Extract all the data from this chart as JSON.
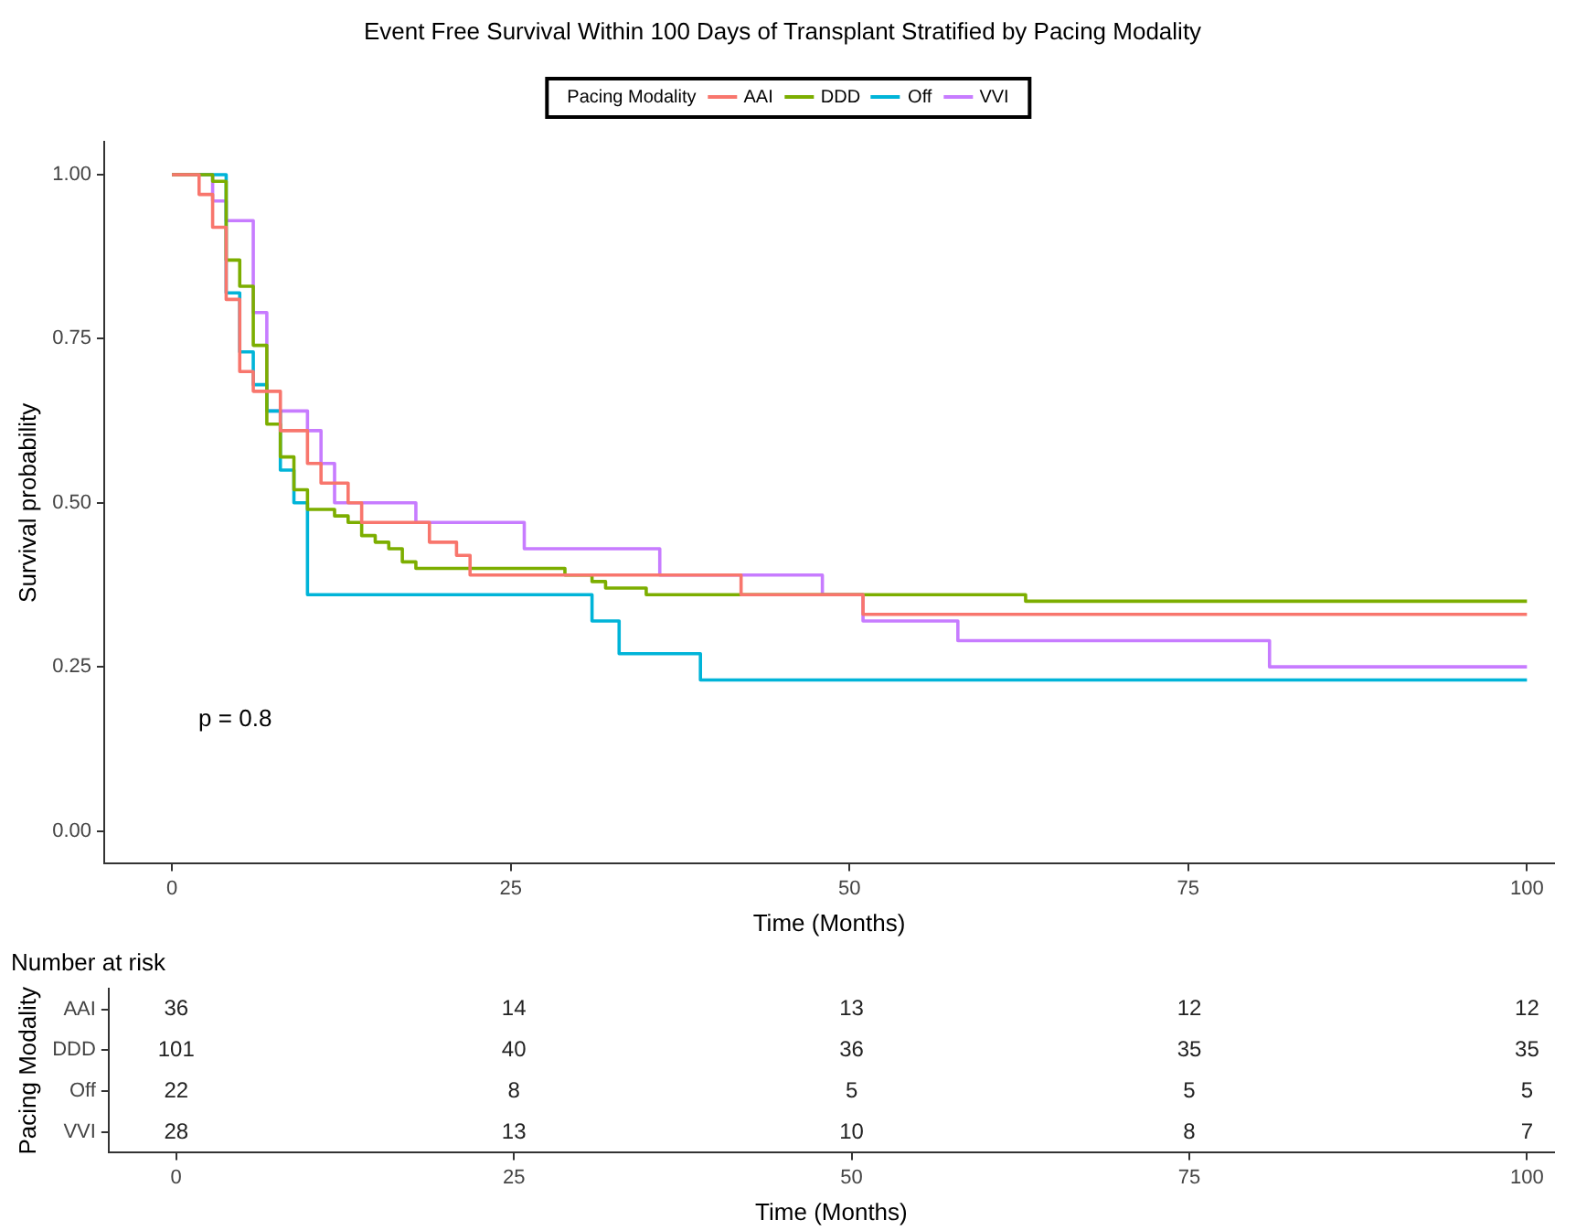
{
  "chart_data": [
    {
      "type": "step",
      "title": "Event Free Survival Within 100 Days of Transplant Stratified by Pacing Modality",
      "xlabel": "Time (Months)",
      "ylabel": "Survival probability",
      "legend_title": "Pacing Modality",
      "legend": "top",
      "marker": "none",
      "grid": false,
      "xlim": [
        -5,
        102
      ],
      "xticks": [
        0,
        25,
        50,
        75,
        100
      ],
      "ylim": [
        -0.05,
        1.05
      ],
      "yticks": [
        {
          "value": 0,
          "label": "0.00"
        },
        {
          "value": 0.25,
          "label": "0.25"
        },
        {
          "value": 0.5,
          "label": "0.50"
        },
        {
          "value": 0.75,
          "label": "0.75"
        },
        {
          "value": 1,
          "label": "1.00"
        }
      ],
      "annotations": [
        "p = 0.8"
      ],
      "series": [
        {
          "name": "AAI",
          "color": "#f8766d",
          "x": [
            0,
            2,
            3,
            4,
            5,
            6,
            8,
            10,
            11,
            13,
            14,
            19,
            21,
            22,
            42,
            51,
            100
          ],
          "values": [
            1,
            0.97,
            0.92,
            0.81,
            0.7,
            0.67,
            0.61,
            0.56,
            0.53,
            0.5,
            0.47,
            0.44,
            0.42,
            0.39,
            0.36,
            0.33,
            0.33
          ]
        },
        {
          "name": "DDD",
          "color": "#7cae00",
          "x": [
            0,
            3,
            4,
            5,
            6,
            7,
            8,
            9,
            10,
            12,
            13,
            14,
            15,
            16,
            17,
            18,
            29,
            31,
            32,
            35,
            63,
            100
          ],
          "values": [
            1,
            0.99,
            0.87,
            0.83,
            0.74,
            0.62,
            0.57,
            0.52,
            0.49,
            0.48,
            0.47,
            0.45,
            0.44,
            0.43,
            0.41,
            0.4,
            0.39,
            0.38,
            0.37,
            0.36,
            0.35,
            0.35
          ]
        },
        {
          "name": "Off",
          "color": "#00b4d8",
          "x": [
            0,
            4,
            5,
            6,
            7,
            8,
            9,
            10,
            31,
            33,
            39,
            100
          ],
          "values": [
            1,
            0.82,
            0.73,
            0.68,
            0.64,
            0.55,
            0.5,
            0.36,
            0.32,
            0.27,
            0.23,
            0.23
          ]
        },
        {
          "name": "VVI",
          "color": "#c77cff",
          "x": [
            0,
            3,
            4,
            6,
            7,
            10,
            11,
            12,
            18,
            26,
            36,
            48,
            51,
            58,
            81,
            100
          ],
          "values": [
            1,
            0.96,
            0.93,
            0.79,
            0.64,
            0.61,
            0.56,
            0.5,
            0.47,
            0.43,
            0.39,
            0.36,
            0.32,
            0.29,
            0.25,
            0.25
          ]
        }
      ]
    },
    {
      "type": "heatmap",
      "title": "Number at risk",
      "xlabel": "Time (Months)",
      "ylabel": "Pacing Modality",
      "data_labels": true,
      "x": [
        0,
        25,
        50,
        75,
        100
      ],
      "xlim": [
        -5,
        102
      ],
      "xticks": [
        0,
        25,
        50,
        75,
        100
      ],
      "y_categories": [
        "AAI",
        "DDD",
        "Off",
        "VVI"
      ],
      "cells": [
        [
          36,
          14,
          13,
          12,
          12
        ],
        [
          101,
          40,
          36,
          35,
          35
        ],
        [
          22,
          8,
          5,
          5,
          5
        ],
        [
          28,
          13,
          10,
          8,
          7
        ]
      ]
    }
  ]
}
